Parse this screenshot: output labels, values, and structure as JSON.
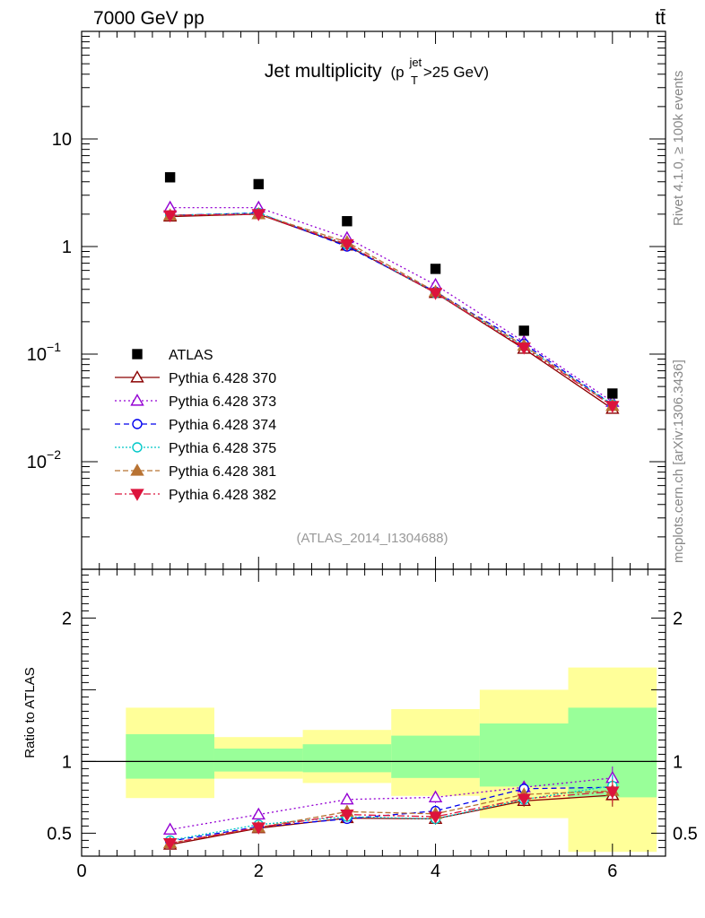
{
  "header": {
    "energy_label": "7000 GeV pp",
    "process_label": "tt̄",
    "side_top": "Rivet 4.1.0, ≥ 100k events",
    "side_bottom": "mcplots.cern.ch [arXiv:1306.3436]"
  },
  "chart_data": {
    "type": "line",
    "title": "Jet multiplicity",
    "title_sub": "(p",
    "title_sub_sup": "jet",
    "title_sub_sub": "T",
    "title_sub_rest": ">25 GeV)",
    "analysis_id": "(ATLAS_2014_I1304688)",
    "xlim": [
      0,
      6.6
    ],
    "xticks": [
      "0",
      "2",
      "4",
      "6"
    ],
    "main_y_scale": "log",
    "main_ylim": [
      0.001,
      100
    ],
    "main_yticks": [
      {
        "value": 10,
        "base": "10",
        "exp": ""
      },
      {
        "value": 1,
        "base": "1",
        "exp": ""
      },
      {
        "value": 0.1,
        "base": "10",
        "exp": "−1"
      },
      {
        "value": 0.01,
        "base": "10",
        "exp": "−2"
      }
    ],
    "ratio_ylabel": "Ratio to ATLAS",
    "ratio_ylim": [
      0.34,
      2.34
    ],
    "ratio_yticks": [
      "0.5",
      "1",
      "2"
    ],
    "x": [
      1,
      2,
      3,
      4,
      5,
      6
    ],
    "data_series": {
      "name": "ATLAS",
      "values": [
        4.4,
        3.8,
        1.72,
        0.62,
        0.165,
        0.043
      ],
      "color": "#000000"
    },
    "series": [
      {
        "name": "Pythia 6.428 370",
        "color": "#8b0000",
        "dash": "",
        "marker": "triangle-open",
        "values": [
          1.9,
          2.0,
          1.02,
          0.37,
          0.112,
          0.031
        ],
        "ratio": [
          0.42,
          0.535,
          0.605,
          0.6,
          0.725,
          0.765
        ]
      },
      {
        "name": "Pythia 6.428 373",
        "color": "#9400d3",
        "dash": "2,3",
        "marker": "triangle-open",
        "values": [
          2.3,
          2.3,
          1.2,
          0.44,
          0.13,
          0.036
        ],
        "ratio": [
          0.525,
          0.63,
          0.735,
          0.75,
          0.82,
          0.885
        ]
      },
      {
        "name": "Pythia 6.428 374",
        "color": "#0000ee",
        "dash": "6,4",
        "marker": "circle-open",
        "values": [
          1.95,
          2.05,
          1.0,
          0.38,
          0.125,
          0.034
        ],
        "ratio": [
          0.445,
          0.545,
          0.6,
          0.655,
          0.81,
          0.82
        ]
      },
      {
        "name": "Pythia 6.428 375",
        "color": "#00c8c8",
        "dash": "2,2",
        "marker": "circle-open",
        "values": [
          1.95,
          2.05,
          1.04,
          0.37,
          0.118,
          0.034
        ],
        "ratio": [
          0.45,
          0.56,
          0.615,
          0.6,
          0.735,
          0.83
        ]
      },
      {
        "name": "Pythia 6.428 381",
        "color": "#b87333",
        "dash": "6,3",
        "marker": "triangle-filled",
        "values": [
          1.95,
          2.0,
          1.1,
          0.38,
          0.12,
          0.033
        ],
        "ratio": [
          0.43,
          0.54,
          0.65,
          0.635,
          0.77,
          0.795
        ]
      },
      {
        "name": "Pythia 6.428 382",
        "color": "#dc143c",
        "dash": "8,3,2,3",
        "marker": "triangledown-filled",
        "values": [
          1.95,
          2.0,
          1.05,
          0.37,
          0.115,
          0.033
        ],
        "ratio": [
          0.43,
          0.54,
          0.63,
          0.615,
          0.74,
          0.79
        ]
      }
    ],
    "ratio_bands": [
      {
        "xmin": 0.5,
        "xmax": 1.5,
        "inner": [
          0.88,
          1.19
        ],
        "outer": [
          0.745,
          1.375
        ]
      },
      {
        "xmin": 1.5,
        "xmax": 2.5,
        "inner": [
          0.93,
          1.09
        ],
        "outer": [
          0.88,
          1.17
        ]
      },
      {
        "xmin": 2.5,
        "xmax": 3.5,
        "inner": [
          0.925,
          1.12
        ],
        "outer": [
          0.85,
          1.22
        ]
      },
      {
        "xmin": 3.5,
        "xmax": 4.5,
        "inner": [
          0.885,
          1.18
        ],
        "outer": [
          0.76,
          1.365
        ]
      },
      {
        "xmin": 4.5,
        "xmax": 5.5,
        "inner": [
          0.825,
          1.265
        ],
        "outer": [
          0.605,
          1.5
        ]
      },
      {
        "xmin": 5.5,
        "xmax": 6.5,
        "inner": [
          0.75,
          1.375
        ],
        "outer": [
          0.37,
          1.655
        ]
      }
    ]
  }
}
